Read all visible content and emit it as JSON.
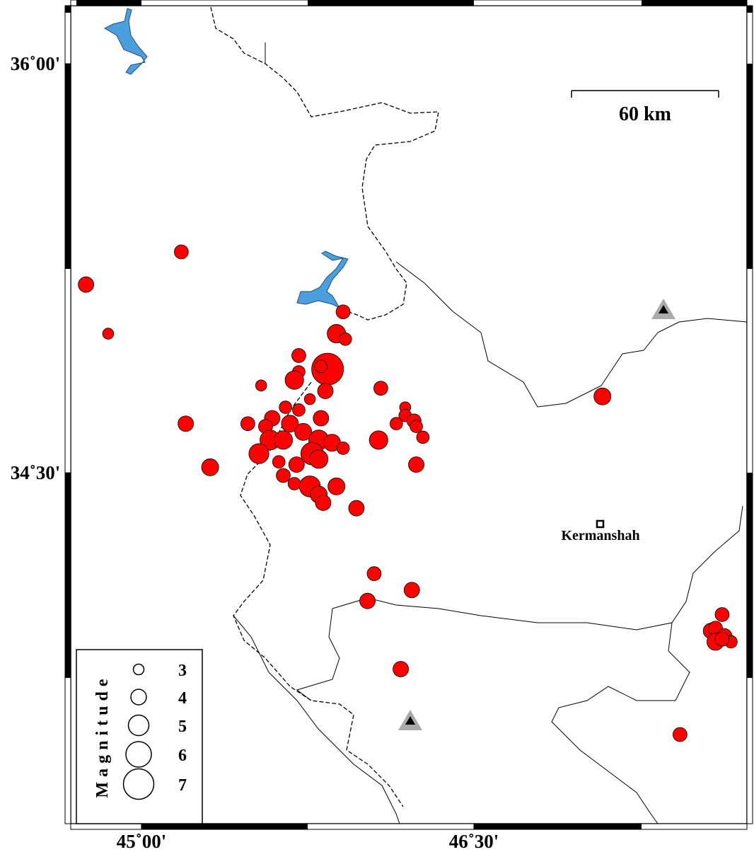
{
  "chart_data": {
    "type": "scatter",
    "xlim": [
      44.681,
      47.732
    ],
    "ylim": [
      33.213,
      36.213
    ],
    "xticks": [
      {
        "value": 45,
        "label": "45˚00'"
      },
      {
        "value": 46.5,
        "label": "46˚30'"
      }
    ],
    "yticks": [
      {
        "value": 36,
        "label": "36˚00'"
      },
      {
        "value": 34.5,
        "label": "34˚30'"
      }
    ],
    "color": "#ff0000",
    "x": [
      44.75,
      45.18,
      44.85,
      45.2,
      45.31,
      45.48,
      45.54,
      45.91,
      45.88,
      45.92,
      45.84,
      45.81,
      45.71,
      45.71,
      45.69,
      45.83,
      45.76,
      45.65,
      45.71,
      45.59,
      45.56,
      45.81,
      45.67,
      45.58,
      45.53,
      45.64,
      45.73,
      45.8,
      45.86,
      45.91,
      45.77,
      45.7,
      45.8,
      45.62,
      45.64,
      45.69,
      45.76,
      45.8,
      45.88,
      45.82,
      45.97,
      46.08,
      46.19,
      46.19,
      46.15,
      46.23,
      46.24,
      46.27,
      46.07,
      46.24,
      46.05,
      46.22,
      46.02,
      46.17,
      47.08,
      47.62,
      47.57,
      47.59,
      47.63,
      47.59,
      47.66,
      47.62,
      47.43
    ],
    "values": [
      35.19,
      35.31,
      35.01,
      34.68,
      34.52,
      34.68,
      34.82,
      35.09,
      35.01,
      34.99,
      34.88,
      34.89,
      34.93,
      34.87,
      34.84,
      34.8,
      34.77,
      34.74,
      34.73,
      34.7,
      34.67,
      34.7,
      34.68,
      34.62,
      34.57,
      34.62,
      34.65,
      34.62,
      34.61,
      34.59,
      34.57,
      34.53,
      34.55,
      34.54,
      34.49,
      34.46,
      34.45,
      34.42,
      34.45,
      34.39,
      34.37,
      34.81,
      34.74,
      34.71,
      34.68,
      34.69,
      34.67,
      34.63,
      34.62,
      34.53,
      34.13,
      34.07,
      34.03,
      33.78,
      34.78,
      33.98,
      33.92,
      33.93,
      33.9,
      33.88,
      33.88,
      33.89,
      33.54
    ],
    "sizes": [
      4.0,
      3.7,
      3.1,
      4.0,
      4.3,
      3.7,
      3.1,
      3.7,
      4.6,
      3.4,
      7.3,
      3.4,
      3.7,
      3.4,
      4.6,
      4.0,
      3.1,
      3.4,
      3.4,
      4.0,
      3.7,
      4.0,
      4.3,
      4.9,
      4.9,
      4.6,
      4.3,
      4.9,
      4.3,
      3.4,
      5.4,
      4.0,
      4.6,
      3.4,
      3.7,
      3.4,
      5.1,
      4.3,
      4.3,
      4.0,
      4.0,
      3.7,
      3.1,
      3.4,
      3.4,
      3.7,
      3.4,
      3.4,
      4.6,
      4.0,
      3.7,
      4.0,
      4.0,
      4.0,
      4.3,
      3.7,
      4.0,
      3.7,
      4.0,
      4.3,
      3.4,
      3.7,
      3.7
    ],
    "legend": {
      "title": "Magnitude",
      "magnitudes": [
        3,
        4,
        5,
        6,
        7
      ]
    },
    "scale_bar": "60 km",
    "city": "Kermanshah"
  }
}
